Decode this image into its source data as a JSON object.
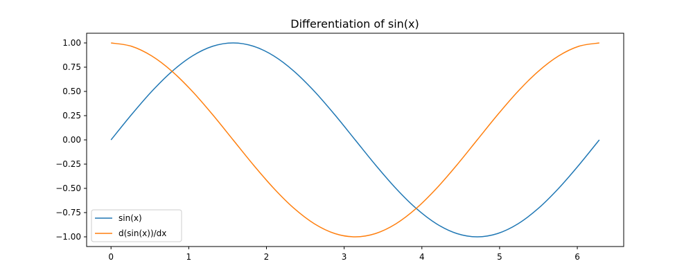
{
  "chart_data": {
    "type": "line",
    "title": "Differentiation of sin(x)",
    "xlabel": "",
    "ylabel": "",
    "xlim": [
      -0.314,
      6.597
    ],
    "ylim": [
      -1.1,
      1.1
    ],
    "xticks": [
      0,
      1,
      2,
      3,
      4,
      5,
      6
    ],
    "xtick_labels": [
      "0",
      "1",
      "2",
      "3",
      "4",
      "5",
      "6"
    ],
    "yticks": [
      -1.0,
      -0.75,
      -0.5,
      -0.25,
      0.0,
      0.25,
      0.5,
      0.75,
      1.0
    ],
    "ytick_labels": [
      "−1.00",
      "−0.75",
      "−0.50",
      "−0.25",
      "0.00",
      "0.25",
      "0.50",
      "0.75",
      "1.00"
    ],
    "grid": false,
    "legend_position": "lower-left",
    "x": [
      0,
      0.2618,
      0.5236,
      0.7854,
      1.0472,
      1.309,
      1.5708,
      1.8326,
      2.0944,
      2.3562,
      2.618,
      2.8798,
      3.1416,
      3.4034,
      3.6652,
      3.927,
      4.1888,
      4.4506,
      4.7124,
      4.9742,
      5.236,
      5.4978,
      5.7596,
      6.0214,
      6.2832
    ],
    "series": [
      {
        "name": "sin(x)",
        "color": "#1f77b4",
        "values": [
          0,
          0.2588,
          0.5,
          0.7071,
          0.866,
          0.9659,
          1,
          0.9659,
          0.866,
          0.7071,
          0.5,
          0.2588,
          0,
          -0.2588,
          -0.5,
          -0.7071,
          -0.866,
          -0.9659,
          -1,
          -0.9659,
          -0.866,
          -0.7071,
          -0.5,
          -0.2588,
          0
        ]
      },
      {
        "name": "d(sin(x))/dx",
        "color": "#ff7f0e",
        "values": [
          1,
          0.9659,
          0.866,
          0.7071,
          0.5,
          0.2588,
          0,
          -0.2588,
          -0.5,
          -0.7071,
          -0.866,
          -0.9659,
          -1,
          -0.9659,
          -0.866,
          -0.7071,
          -0.5,
          -0.2588,
          0,
          0.2588,
          0.5,
          0.7071,
          0.866,
          0.9659,
          1
        ]
      }
    ]
  }
}
